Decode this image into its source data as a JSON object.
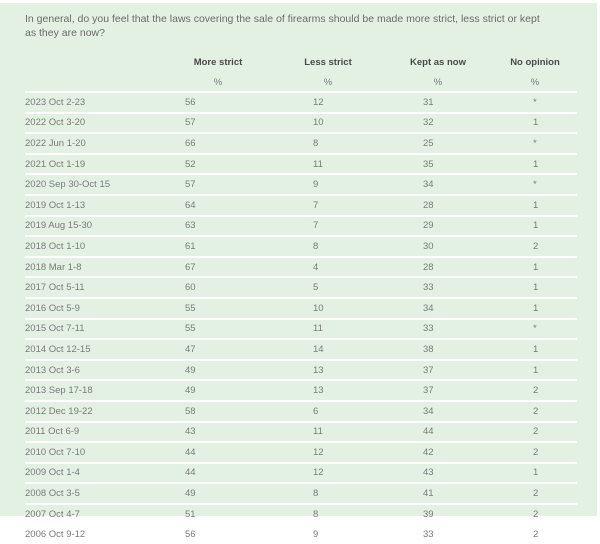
{
  "question": "In general, do you feel that the laws covering the sale of firearms should be made more strict, less strict or kept as they are now?",
  "columns": [
    "More strict",
    "Less strict",
    "Kept as now",
    "No opinion"
  ],
  "unit_row": [
    "%",
    "%",
    "%",
    "%"
  ],
  "rows": [
    {
      "date": "2023 Oct 2-23",
      "values": [
        "56",
        "12",
        "31",
        "*"
      ]
    },
    {
      "date": "2022 Oct 3-20",
      "values": [
        "57",
        "10",
        "32",
        "1"
      ]
    },
    {
      "date": "2022 Jun 1-20",
      "values": [
        "66",
        "8",
        "25",
        "*"
      ]
    },
    {
      "date": "2021 Oct 1-19",
      "values": [
        "52",
        "11",
        "35",
        "1"
      ]
    },
    {
      "date": "2020 Sep 30-Oct 15",
      "values": [
        "57",
        "9",
        "34",
        "*"
      ]
    },
    {
      "date": "2019 Oct 1-13",
      "values": [
        "64",
        "7",
        "28",
        "1"
      ]
    },
    {
      "date": "2019 Aug 15-30",
      "values": [
        "63",
        "7",
        "29",
        "1"
      ]
    },
    {
      "date": "2018 Oct 1-10",
      "values": [
        "61",
        "8",
        "30",
        "2"
      ]
    },
    {
      "date": "2018 Mar 1-8",
      "values": [
        "67",
        "4",
        "28",
        "1"
      ]
    },
    {
      "date": "2017 Oct 5-11",
      "values": [
        "60",
        "5",
        "33",
        "1"
      ]
    },
    {
      "date": "2016 Oct 5-9",
      "values": [
        "55",
        "10",
        "34",
        "1"
      ]
    },
    {
      "date": "2015 Oct 7-11",
      "values": [
        "55",
        "11",
        "33",
        "*"
      ]
    },
    {
      "date": "2014 Oct 12-15",
      "values": [
        "47",
        "14",
        "38",
        "1"
      ]
    },
    {
      "date": "2013 Oct 3-6",
      "values": [
        "49",
        "13",
        "37",
        "1"
      ]
    },
    {
      "date": "2013 Sep 17-18",
      "values": [
        "49",
        "13",
        "37",
        "2"
      ]
    },
    {
      "date": "2012 Dec 19-22",
      "values": [
        "58",
        "6",
        "34",
        "2"
      ]
    },
    {
      "date": "2011 Oct 6-9",
      "values": [
        "43",
        "11",
        "44",
        "2"
      ]
    },
    {
      "date": "2010 Oct 7-10",
      "values": [
        "44",
        "12",
        "42",
        "2"
      ]
    },
    {
      "date": "2009 Oct 1-4",
      "values": [
        "44",
        "12",
        "43",
        "1"
      ]
    },
    {
      "date": "2008 Oct 3-5",
      "values": [
        "49",
        "8",
        "41",
        "2"
      ]
    },
    {
      "date": "2007 Oct 4-7",
      "values": [
        "51",
        "8",
        "39",
        "2"
      ]
    },
    {
      "date": "2006 Oct 9-12",
      "values": [
        "56",
        "9",
        "33",
        "2"
      ]
    }
  ],
  "colors": {
    "background": "#e3f1e2",
    "row_separator": "#ffffff"
  }
}
